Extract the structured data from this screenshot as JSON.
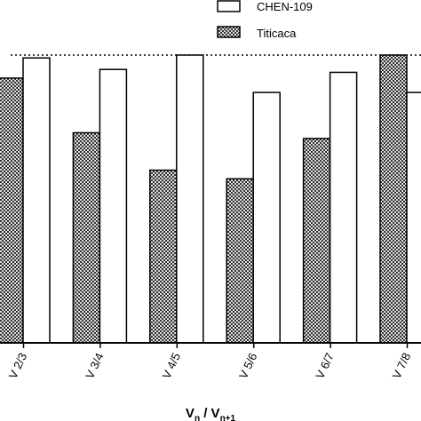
{
  "chart_data": {
    "type": "bar",
    "categories": [
      "V 2/3",
      "V 3/4",
      "V 4/5",
      "V 5/6",
      "V 6/7",
      "V 7/8"
    ],
    "series": [
      {
        "name": "Titicaca",
        "values": [
          0.92,
          0.73,
          0.6,
          0.57,
          0.71,
          1.0
        ],
        "pattern": "checker"
      },
      {
        "name": "CHEN-109",
        "values": [
          0.99,
          0.95,
          1.0,
          0.87,
          0.94,
          0.87
        ],
        "pattern": "white"
      }
    ],
    "reference_line": 1.0,
    "ylim": [
      0,
      1.0
    ],
    "xlabel": {
      "main": "V",
      "sub_a": "n",
      "sep": " / V",
      "sub_b": "n+1"
    },
    "legend_placement": "top-right",
    "colors": {
      "bar_stroke": "#000000",
      "white_fill": "#ffffff",
      "checker_dark": "#333333",
      "checker_light": "#dddddd"
    }
  }
}
